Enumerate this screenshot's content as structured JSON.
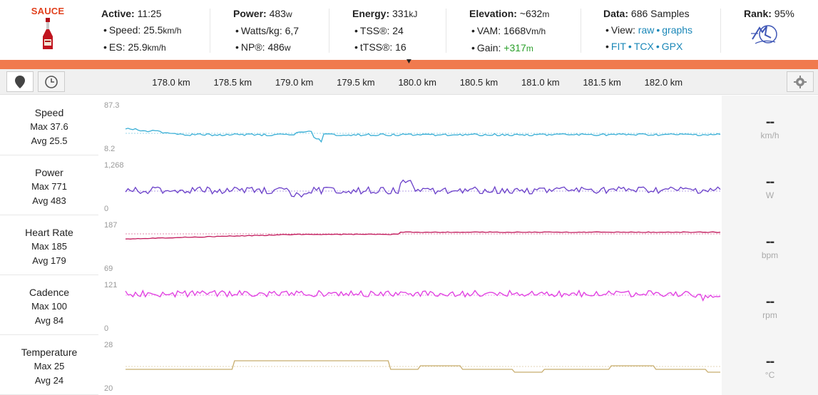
{
  "logo": {
    "text": "SAUCE"
  },
  "header": {
    "active": {
      "title": "Active:",
      "value": "11:25"
    },
    "speed": {
      "label": "Speed:",
      "value": "25.5",
      "unit": "km/h"
    },
    "es": {
      "label": "ES:",
      "value": "25.9",
      "unit": "km/h"
    },
    "power": {
      "title": "Power:",
      "value": "483",
      "unit": "w"
    },
    "wkg": {
      "label": "Watts/kg:",
      "value": "6,7"
    },
    "np": {
      "label": "NP®:",
      "value": "486",
      "unit": "w"
    },
    "energy": {
      "title": "Energy:",
      "value": "331",
      "unit": "kJ"
    },
    "tss": {
      "label": "TSS®:",
      "value": "24"
    },
    "ttss": {
      "label": "tTSS®:",
      "value": "16"
    },
    "elevation": {
      "title": "Elevation:",
      "value": "~632",
      "unit": "m"
    },
    "vam": {
      "label": "VAM:",
      "value": "1668",
      "unit": "Vm/h"
    },
    "gain": {
      "label": "Gain:",
      "value": "+317",
      "unit": "m"
    },
    "data": {
      "title": "Data:",
      "value": "686 Samples"
    },
    "view": {
      "label": "View:",
      "raw": "raw",
      "graphs": "graphs"
    },
    "exports": {
      "fit": "FIT",
      "tcx": "TCX",
      "gpx": "GPX"
    },
    "rank": {
      "title": "Rank:",
      "value": "95",
      "unit": "%"
    }
  },
  "toolbar": {
    "ticks": [
      "178.0 km",
      "178.5 km",
      "179.0 km",
      "179.5 km",
      "180.0 km",
      "180.5 km",
      "181.0 km",
      "181.5 km",
      "182.0 km"
    ]
  },
  "colors": {
    "speed": "#3aafd6",
    "power": "#6a3fc9",
    "hr": "#c2185b",
    "cadence": "#e03be0",
    "temp": "#c8ad6e",
    "accent": "#f07a4e"
  },
  "streams": [
    {
      "key": "speed",
      "name": "Speed",
      "max": "Max 37.6",
      "avg": "Avg 25.5",
      "ymax": "87.3",
      "ymin": "8.2",
      "dash": "--",
      "unit": "km/h"
    },
    {
      "key": "power",
      "name": "Power",
      "max": "Max 771",
      "avg": "Avg 483",
      "ymax": "1,268",
      "ymin": "0",
      "dash": "--",
      "unit": "W"
    },
    {
      "key": "hr",
      "name": "Heart Rate",
      "max": "Max 185",
      "avg": "Avg 179",
      "ymax": "187",
      "ymin": "69",
      "dash": "--",
      "unit": "bpm"
    },
    {
      "key": "cadence",
      "name": "Cadence",
      "max": "Max 100",
      "avg": "Avg 84",
      "ymax": "121",
      "ymin": "0",
      "dash": "--",
      "unit": "rpm"
    },
    {
      "key": "temp",
      "name": "Temperature",
      "max": "Max 25",
      "avg": "Avg 24",
      "ymax": "28",
      "ymin": "20",
      "dash": "--",
      "unit": "°C"
    }
  ]
}
